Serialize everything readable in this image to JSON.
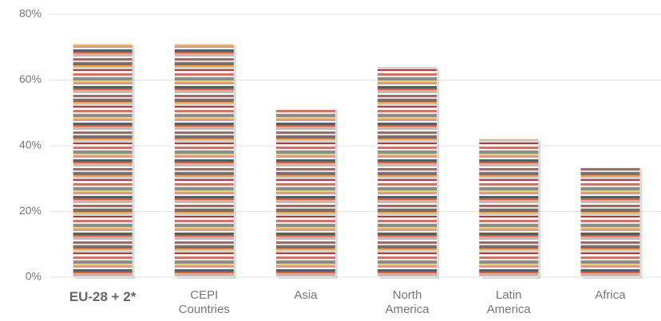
{
  "chart_data": {
    "type": "bar",
    "categories": [
      "EU-28 + 2*",
      "CEPI Countries",
      "Asia",
      "North America",
      "Latin America",
      "Africa"
    ],
    "values": [
      71,
      71,
      51.5,
      64,
      42,
      33.5
    ],
    "ylim": [
      0,
      80
    ],
    "yticks": [
      {
        "value": 0,
        "label": "0%"
      },
      {
        "value": 20,
        "label": "20%"
      },
      {
        "value": 40,
        "label": "40%"
      },
      {
        "value": 60,
        "label": "60%"
      },
      {
        "value": 80,
        "label": "80%"
      }
    ],
    "grid": true
  }
}
